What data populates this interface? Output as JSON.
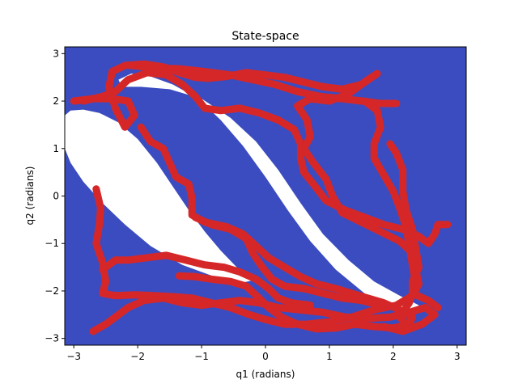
{
  "chart_data": {
    "type": "heatmap",
    "title": "State-space",
    "xlabel": "q1 (radians)",
    "ylabel": "q2 (radians)",
    "xlim": [
      -3.1416,
      3.1416
    ],
    "ylim": [
      -3.1416,
      3.1416
    ],
    "xticks": [
      "−3",
      "−2",
      "−1",
      "0",
      "1",
      "2",
      "3"
    ],
    "yticks": [
      "−3",
      "−2",
      "−1",
      "0",
      "1",
      "2",
      "3"
    ],
    "xtick_values": [
      -3,
      -2,
      -1,
      0,
      1,
      2,
      3
    ],
    "ytick_values": [
      -3,
      -2,
      -1,
      0,
      1,
      2,
      3
    ],
    "grid": false,
    "colors": {
      "free_region": "#3b4cc0",
      "obstacle_region": "#ffffff",
      "trajectory": "#d62728"
    },
    "obstacle_regions": [
      {
        "outline": [
          [
            -3.14,
            1.7
          ],
          [
            -3.05,
            1.8
          ],
          [
            -2.85,
            1.82
          ],
          [
            -2.6,
            1.75
          ],
          [
            -2.3,
            1.55
          ],
          [
            -2.0,
            1.2
          ],
          [
            -1.7,
            0.7
          ],
          [
            -1.45,
            0.2
          ],
          [
            -1.2,
            -0.3
          ],
          [
            -0.95,
            -0.75
          ],
          [
            -0.7,
            -1.15
          ],
          [
            -0.45,
            -1.5
          ],
          [
            -0.2,
            -1.78
          ],
          [
            -0.35,
            -1.82
          ],
          [
            -0.8,
            -1.7
          ],
          [
            -1.3,
            -1.45
          ],
          [
            -1.8,
            -1.05
          ],
          [
            -2.2,
            -0.6
          ],
          [
            -2.55,
            -0.15
          ],
          [
            -2.85,
            0.3
          ],
          [
            -3.05,
            0.7
          ],
          [
            -3.14,
            1.0
          ]
        ]
      },
      {
        "outline": [
          [
            -2.3,
            2.45
          ],
          [
            -2.1,
            2.58
          ],
          [
            -1.8,
            2.52
          ],
          [
            -1.45,
            2.35
          ],
          [
            -1.05,
            2.05
          ],
          [
            -0.7,
            1.6
          ],
          [
            -0.35,
            1.05
          ],
          [
            0.0,
            0.4
          ],
          [
            0.35,
            -0.3
          ],
          [
            0.7,
            -0.95
          ],
          [
            1.1,
            -1.55
          ],
          [
            1.55,
            -2.05
          ],
          [
            2.0,
            -2.35
          ],
          [
            2.35,
            -2.45
          ],
          [
            2.4,
            -2.3
          ],
          [
            2.1,
            -2.1
          ],
          [
            1.7,
            -1.8
          ],
          [
            1.3,
            -1.35
          ],
          [
            0.9,
            -0.8
          ],
          [
            0.55,
            -0.15
          ],
          [
            0.2,
            0.55
          ],
          [
            -0.15,
            1.15
          ],
          [
            -0.55,
            1.65
          ],
          [
            -1.0,
            2.05
          ],
          [
            -1.5,
            2.25
          ],
          [
            -1.95,
            2.3
          ],
          [
            -2.25,
            2.3
          ]
        ]
      }
    ],
    "series": [
      {
        "values": [
          [
            -3.0,
            2.0
          ],
          [
            -2.7,
            2.05
          ],
          [
            -2.4,
            2.05
          ],
          [
            -2.15,
            2.0
          ],
          [
            -2.05,
            1.7
          ],
          [
            -2.2,
            1.45
          ],
          [
            -2.35,
            1.85
          ],
          [
            -2.45,
            2.3
          ],
          [
            -2.4,
            2.62
          ],
          [
            -2.2,
            2.75
          ],
          [
            -1.9,
            2.78
          ],
          [
            -1.6,
            2.72
          ],
          [
            -1.35,
            2.6
          ],
          [
            -1.1,
            2.5
          ],
          [
            -0.9,
            2.48
          ],
          [
            -0.6,
            2.52
          ],
          [
            -0.3,
            2.6
          ],
          [
            0.0,
            2.55
          ],
          [
            0.3,
            2.5
          ],
          [
            0.6,
            2.4
          ],
          [
            0.9,
            2.3
          ],
          [
            1.2,
            2.25
          ],
          [
            1.5,
            2.35
          ],
          [
            1.75,
            2.58
          ],
          [
            1.6,
            2.45
          ],
          [
            1.3,
            2.15
          ],
          [
            1.0,
            2.0
          ],
          [
            0.7,
            2.05
          ],
          [
            0.5,
            1.9
          ],
          [
            0.65,
            1.6
          ],
          [
            0.7,
            1.25
          ],
          [
            0.6,
            1.0
          ],
          [
            0.75,
            0.7
          ],
          [
            0.95,
            0.35
          ],
          [
            1.05,
            0.0
          ],
          [
            1.2,
            -0.35
          ],
          [
            1.5,
            -0.55
          ],
          [
            1.8,
            -0.75
          ],
          [
            2.1,
            -0.95
          ],
          [
            2.3,
            -1.2
          ],
          [
            2.35,
            -1.55
          ],
          [
            2.4,
            -1.85
          ],
          [
            2.3,
            -2.1
          ],
          [
            2.05,
            -2.3
          ],
          [
            1.7,
            -2.4
          ],
          [
            1.35,
            -2.55
          ],
          [
            1.0,
            -2.65
          ],
          [
            0.65,
            -2.7
          ],
          [
            0.3,
            -2.7
          ],
          [
            0.0,
            -2.6
          ],
          [
            -0.25,
            -2.5
          ],
          [
            -0.55,
            -2.35
          ],
          [
            -0.85,
            -2.25
          ],
          [
            -1.15,
            -2.15
          ],
          [
            -1.45,
            -2.12
          ],
          [
            -1.75,
            -2.1
          ],
          [
            -2.05,
            -2.08
          ],
          [
            -2.35,
            -2.1
          ],
          [
            -2.55,
            -2.05
          ],
          [
            -2.5,
            -1.8
          ],
          [
            -2.55,
            -1.4
          ],
          [
            -2.65,
            -1.0
          ],
          [
            -2.6,
            -0.6
          ],
          [
            -2.58,
            -0.25
          ],
          [
            -2.65,
            0.15
          ]
        ]
      },
      {
        "values": [
          [
            -2.85,
            2.0
          ],
          [
            -2.55,
            2.1
          ],
          [
            -2.35,
            2.2
          ],
          [
            -2.15,
            2.45
          ],
          [
            -1.85,
            2.6
          ],
          [
            -1.55,
            2.55
          ],
          [
            -1.3,
            2.35
          ],
          [
            -1.1,
            2.1
          ],
          [
            -0.95,
            1.85
          ],
          [
            -0.7,
            1.8
          ],
          [
            -0.4,
            1.85
          ],
          [
            -0.1,
            1.75
          ],
          [
            0.2,
            1.6
          ],
          [
            0.45,
            1.4
          ],
          [
            0.55,
            1.1
          ],
          [
            0.55,
            0.8
          ],
          [
            0.6,
            0.5
          ],
          [
            0.75,
            0.25
          ],
          [
            0.95,
            -0.1
          ],
          [
            1.25,
            -0.3
          ],
          [
            1.55,
            -0.45
          ],
          [
            1.85,
            -0.6
          ],
          [
            2.15,
            -0.7
          ],
          [
            2.4,
            -0.85
          ],
          [
            2.55,
            -1.0
          ],
          [
            2.65,
            -0.8
          ],
          [
            2.7,
            -0.6
          ],
          [
            2.85,
            -0.6
          ]
        ]
      },
      {
        "values": [
          [
            -1.95,
            1.45
          ],
          [
            -1.8,
            1.15
          ],
          [
            -1.6,
            1.0
          ],
          [
            -1.5,
            0.7
          ],
          [
            -1.4,
            0.4
          ],
          [
            -1.2,
            0.25
          ],
          [
            -1.15,
            -0.05
          ],
          [
            -1.15,
            -0.4
          ],
          [
            -0.95,
            -0.55
          ],
          [
            -0.6,
            -0.65
          ],
          [
            -0.35,
            -0.8
          ],
          [
            -0.15,
            -1.05
          ],
          [
            0.05,
            -1.3
          ],
          [
            0.3,
            -1.5
          ],
          [
            0.55,
            -1.7
          ],
          [
            0.8,
            -1.85
          ],
          [
            1.1,
            -1.95
          ],
          [
            1.35,
            -2.05
          ],
          [
            1.6,
            -2.15
          ],
          [
            1.85,
            -2.25
          ],
          [
            2.1,
            -2.4
          ],
          [
            2.3,
            -2.55
          ],
          [
            2.25,
            -2.7
          ],
          [
            2.0,
            -2.78
          ],
          [
            1.7,
            -2.75
          ],
          [
            1.4,
            -2.7
          ],
          [
            1.1,
            -2.78
          ],
          [
            0.8,
            -2.8
          ],
          [
            0.5,
            -2.7
          ],
          [
            0.25,
            -2.55
          ],
          [
            0.05,
            -2.35
          ],
          [
            -0.1,
            -2.15
          ],
          [
            -0.3,
            -1.9
          ],
          [
            -0.55,
            -1.8
          ],
          [
            -0.85,
            -1.75
          ],
          [
            -1.1,
            -1.7
          ],
          [
            -1.35,
            -1.68
          ]
        ]
      },
      {
        "values": [
          [
            -2.7,
            -2.85
          ],
          [
            -2.5,
            -2.7
          ],
          [
            -2.35,
            -2.55
          ],
          [
            -2.15,
            -2.35
          ],
          [
            -1.9,
            -2.2
          ],
          [
            -1.6,
            -2.15
          ],
          [
            -1.3,
            -2.25
          ],
          [
            -1.0,
            -2.3
          ],
          [
            -0.7,
            -2.25
          ],
          [
            -0.4,
            -2.2
          ],
          [
            -0.1,
            -2.25
          ],
          [
            0.2,
            -2.35
          ],
          [
            0.55,
            -2.4
          ],
          [
            0.9,
            -2.45
          ],
          [
            1.25,
            -2.55
          ],
          [
            1.6,
            -2.58
          ],
          [
            1.95,
            -2.55
          ],
          [
            2.25,
            -2.45
          ],
          [
            2.5,
            -2.35
          ],
          [
            2.65,
            -2.5
          ],
          [
            2.45,
            -2.7
          ],
          [
            2.15,
            -2.85
          ],
          [
            1.85,
            -2.75
          ]
        ]
      },
      {
        "values": [
          [
            -2.55,
            -1.55
          ],
          [
            -2.35,
            -1.35
          ],
          [
            -2.15,
            -1.35
          ],
          [
            -1.85,
            -1.3
          ],
          [
            -1.55,
            -1.25
          ],
          [
            -1.25,
            -1.35
          ],
          [
            -0.95,
            -1.45
          ],
          [
            -0.65,
            -1.5
          ],
          [
            -0.4,
            -1.6
          ],
          [
            -0.15,
            -1.75
          ],
          [
            0.05,
            -1.95
          ],
          [
            0.2,
            -2.15
          ],
          [
            0.4,
            -2.25
          ],
          [
            0.7,
            -2.3
          ]
        ]
      },
      {
        "values": [
          [
            -1.1,
            -0.45
          ],
          [
            -0.85,
            -0.6
          ],
          [
            -0.55,
            -0.7
          ],
          [
            -0.3,
            -0.9
          ],
          [
            -0.2,
            -1.2
          ],
          [
            -0.05,
            -1.5
          ],
          [
            0.1,
            -1.75
          ],
          [
            0.3,
            -1.9
          ],
          [
            0.6,
            -1.95
          ],
          [
            0.9,
            -2.05
          ],
          [
            1.2,
            -2.15
          ],
          [
            1.5,
            -2.2
          ],
          [
            1.8,
            -2.3
          ]
        ]
      },
      {
        "values": [
          [
            -2.1,
            2.75
          ],
          [
            -1.75,
            2.7
          ],
          [
            -1.35,
            2.68
          ],
          [
            -0.95,
            2.62
          ],
          [
            -0.55,
            2.55
          ],
          [
            -0.2,
            2.45
          ],
          [
            0.15,
            2.35
          ],
          [
            0.5,
            2.2
          ],
          [
            0.85,
            2.1
          ],
          [
            1.2,
            2.05
          ],
          [
            1.5,
            2.0
          ],
          [
            1.8,
            1.95
          ],
          [
            2.05,
            1.95
          ]
        ]
      },
      {
        "values": [
          [
            1.55,
            2.0
          ],
          [
            1.75,
            1.8
          ],
          [
            1.8,
            1.45
          ],
          [
            1.7,
            1.1
          ],
          [
            1.7,
            0.8
          ],
          [
            1.85,
            0.45
          ],
          [
            2.0,
            0.1
          ],
          [
            2.1,
            -0.25
          ],
          [
            2.2,
            -0.65
          ],
          [
            2.25,
            -1.05
          ],
          [
            2.3,
            -1.45
          ],
          [
            2.35,
            -1.85
          ],
          [
            2.25,
            -2.25
          ],
          [
            2.1,
            -2.55
          ],
          [
            2.25,
            -2.75
          ]
        ]
      },
      {
        "values": [
          [
            1.95,
            1.1
          ],
          [
            2.05,
            0.9
          ],
          [
            2.15,
            0.55
          ],
          [
            2.15,
            0.1
          ],
          [
            2.2,
            -0.3
          ],
          [
            2.3,
            -0.7
          ],
          [
            2.35,
            -1.1
          ],
          [
            2.4,
            -1.5
          ],
          [
            2.3,
            -1.8
          ],
          [
            2.3,
            -2.05
          ],
          [
            2.55,
            -2.2
          ],
          [
            2.7,
            -2.35
          ]
        ]
      }
    ]
  }
}
